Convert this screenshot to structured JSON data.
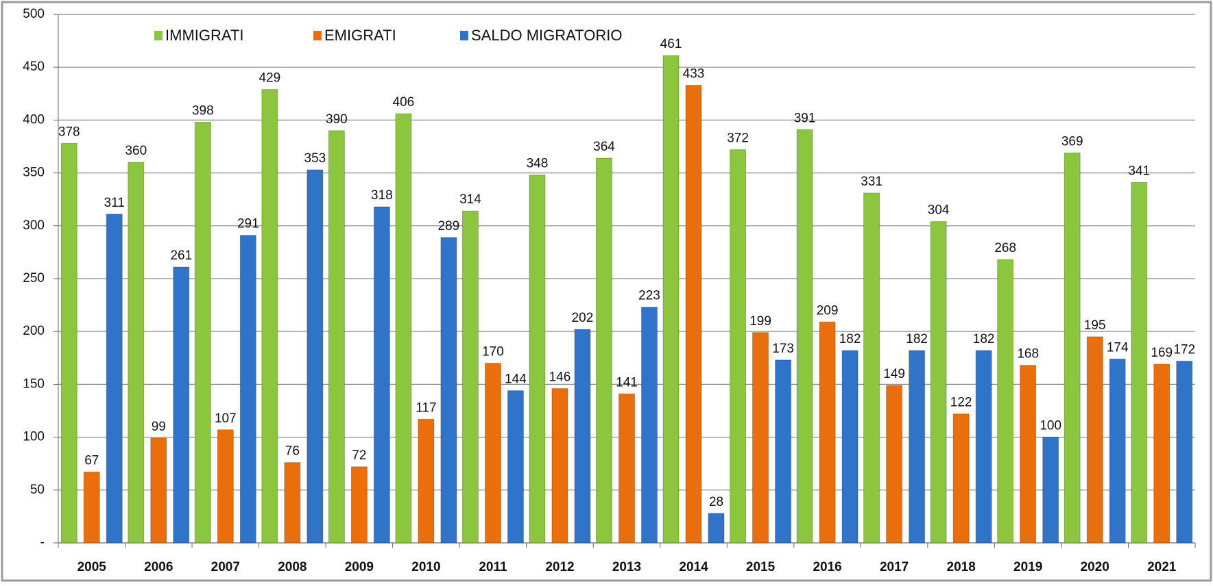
{
  "chart_data": {
    "type": "bar",
    "categories": [
      "2005",
      "2006",
      "2007",
      "2008",
      "2009",
      "2010",
      "2011",
      "2012",
      "2013",
      "2014",
      "2015",
      "2016",
      "2017",
      "2018",
      "2019",
      "2020",
      "2021"
    ],
    "series": [
      {
        "name": "IMMIGRATI",
        "color": "#8cc63e",
        "values": [
          378,
          360,
          398,
          429,
          390,
          406,
          314,
          348,
          364,
          461,
          372,
          391,
          331,
          304,
          268,
          369,
          341
        ]
      },
      {
        "name": "EMIGRATI",
        "color": "#ea6f0c",
        "values": [
          67,
          99,
          107,
          76,
          72,
          117,
          170,
          146,
          141,
          433,
          199,
          209,
          149,
          122,
          168,
          195,
          169
        ]
      },
      {
        "name": "SALDO MIGRATORIO",
        "color": "#2f74c8",
        "values": [
          311,
          261,
          291,
          353,
          318,
          289,
          144,
          202,
          223,
          28,
          173,
          182,
          182,
          182,
          100,
          174,
          172
        ]
      }
    ],
    "ylim": [
      0,
      500
    ],
    "yticks": [
      {
        "value": 0,
        "label": "-"
      },
      50,
      100,
      150,
      200,
      250,
      300,
      350,
      400,
      450,
      500
    ],
    "grid": true
  }
}
